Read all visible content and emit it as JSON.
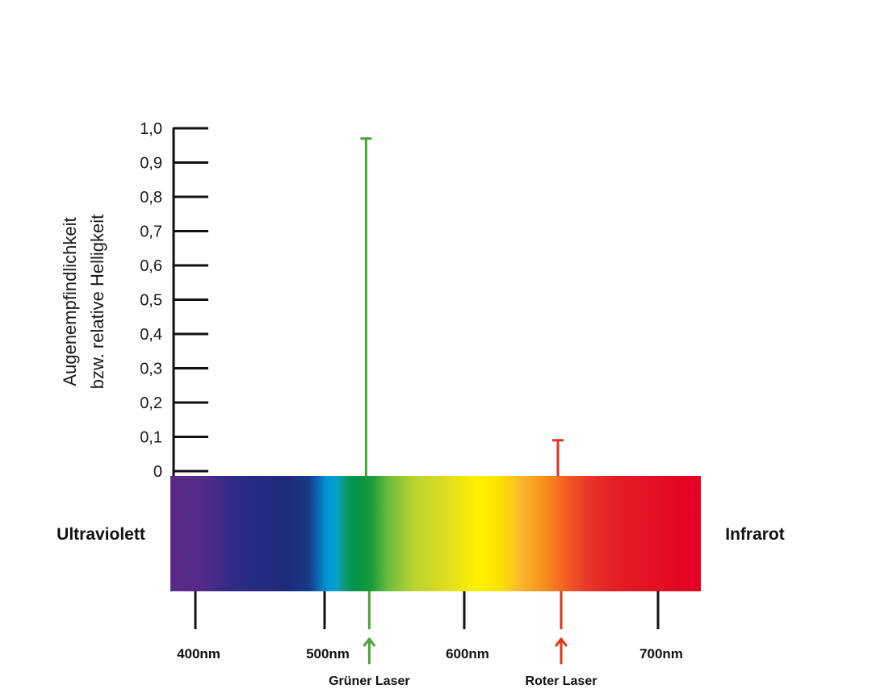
{
  "chart_data": {
    "type": "bar",
    "ylabel_lines": [
      "Augenempfindlichkeit",
      "bzw. relative Helligkeit"
    ],
    "y_ticks": [
      "1,0",
      "0,9",
      "0,8",
      "0,7",
      "0,6",
      "0,5",
      "0,4",
      "0,3",
      "0,2",
      "0,1",
      "0"
    ],
    "ylim": [
      0,
      1.0
    ],
    "x_unit": "nm",
    "xlim": [
      380,
      780
    ],
    "x_ticks": [
      {
        "value": 400,
        "label": "400nm"
      },
      {
        "value": 500,
        "label": "500nm"
      },
      {
        "value": 600,
        "label": "600nm"
      },
      {
        "value": 700,
        "label": "700nm"
      }
    ],
    "lasers": [
      {
        "name": "Grüner Laser",
        "wavelength": 532,
        "value": 0.97,
        "color": "#4aa23a"
      },
      {
        "name": "Roter Laser",
        "wavelength": 650,
        "value": 0.09,
        "color": "#e2341d"
      }
    ],
    "left_label": "Ultraviolett",
    "right_label": "Infrarot",
    "spectrum_colors": [
      "#5b2a86",
      "#2a2a88",
      "#1b2f7e",
      "#0095d9",
      "#009245",
      "#8cc63f",
      "#d7df23",
      "#fff200",
      "#fbb03b",
      "#f15a24",
      "#e31e24",
      "#e30022"
    ],
    "grid": false
  }
}
